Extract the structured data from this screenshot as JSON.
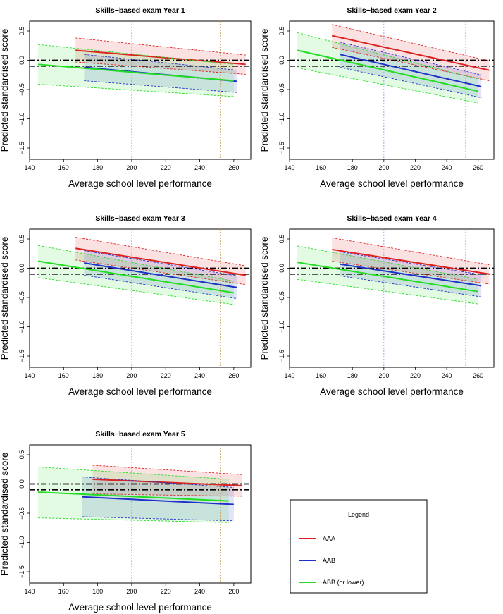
{
  "figure": {
    "xlabel": "Average school level performance",
    "ylabel": "Predicted standardised score",
    "legend_title": "Legend"
  },
  "colors": {
    "AAA": "#dd2222",
    "AAB": "#1f2fc8",
    "ABB": "#22dd22",
    "ref_blue": "#8a90e0",
    "ref_olive": "#c7a060"
  },
  "chart_data": [
    {
      "type": "line",
      "title": "Skills−based exam Year 1",
      "xlim": [
        140,
        270
      ],
      "ylim": [
        -1.5,
        0.5
      ],
      "xticks": [
        140,
        160,
        180,
        200,
        220,
        240,
        260
      ],
      "yticks": [
        -1.5,
        -1.0,
        -0.5,
        0.0,
        0.5
      ],
      "hlines": [
        0,
        -0.1
      ],
      "vlines": [
        200,
        252
      ],
      "series": [
        {
          "name": "AAA",
          "x": [
            167,
            267
          ],
          "y": [
            0.17,
            -0.07
          ],
          "lower": [
            -0.03,
            -0.24
          ],
          "upper": [
            0.38,
            0.09
          ]
        },
        {
          "name": "AAB",
          "x": [
            172,
            262
          ],
          "y": [
            -0.12,
            -0.36
          ],
          "lower": [
            -0.35,
            -0.55
          ],
          "upper": [
            0.1,
            -0.17
          ]
        },
        {
          "name": "ABB (or lower)",
          "x": [
            145,
            260
          ],
          "y": [
            -0.07,
            -0.35
          ],
          "lower": [
            -0.41,
            -0.62
          ],
          "upper": [
            0.27,
            -0.07
          ]
        }
      ]
    },
    {
      "type": "line",
      "title": "Skills−based exam Year 2",
      "xlim": [
        140,
        270
      ],
      "ylim": [
        -1.5,
        0.5
      ],
      "xticks": [
        140,
        160,
        180,
        200,
        220,
        240,
        260
      ],
      "yticks": [
        -1.5,
        -1.0,
        -0.5,
        0.0,
        0.5
      ],
      "hlines": [
        0,
        -0.1
      ],
      "vlines": [
        200,
        252
      ],
      "series": [
        {
          "name": "AAA",
          "x": [
            167,
            267
          ],
          "y": [
            0.42,
            -0.17
          ],
          "lower": [
            0.22,
            -0.35
          ],
          "upper": [
            0.61,
            -0.01
          ]
        },
        {
          "name": "AAB",
          "x": [
            172,
            262
          ],
          "y": [
            0.1,
            -0.45
          ],
          "lower": [
            -0.12,
            -0.64
          ],
          "upper": [
            0.31,
            -0.25
          ]
        },
        {
          "name": "ABB (or lower)",
          "x": [
            145,
            260
          ],
          "y": [
            0.17,
            -0.53
          ],
          "lower": [
            -0.13,
            -0.73
          ],
          "upper": [
            0.47,
            -0.32
          ]
        }
      ]
    },
    {
      "type": "line",
      "title": "Skills−based exam Year 3",
      "xlim": [
        140,
        270
      ],
      "ylim": [
        -1.5,
        0.5
      ],
      "xticks": [
        140,
        160,
        180,
        200,
        220,
        240,
        260
      ],
      "yticks": [
        -1.5,
        -1.0,
        -0.5,
        0.0,
        0.5
      ],
      "hlines": [
        0,
        -0.1
      ],
      "vlines": [
        200,
        252
      ],
      "series": [
        {
          "name": "AAA",
          "x": [
            167,
            267
          ],
          "y": [
            0.34,
            -0.12
          ],
          "lower": [
            0.14,
            -0.28
          ],
          "upper": [
            0.53,
            0.04
          ]
        },
        {
          "name": "AAB",
          "x": [
            172,
            262
          ],
          "y": [
            0.09,
            -0.33
          ],
          "lower": [
            -0.12,
            -0.52
          ],
          "upper": [
            0.3,
            -0.13
          ]
        },
        {
          "name": "ABB (or lower)",
          "x": [
            145,
            260
          ],
          "y": [
            0.12,
            -0.42
          ],
          "lower": [
            -0.16,
            -0.62
          ],
          "upper": [
            0.39,
            -0.22
          ]
        }
      ]
    },
    {
      "type": "line",
      "title": "Skills−based exam Year 4",
      "xlim": [
        140,
        270
      ],
      "ylim": [
        -1.5,
        0.5
      ],
      "xticks": [
        140,
        160,
        180,
        200,
        220,
        240,
        260
      ],
      "yticks": [
        -1.5,
        -1.0,
        -0.5,
        0.0,
        0.5
      ],
      "hlines": [
        0,
        -0.1
      ],
      "vlines": [
        200,
        252
      ],
      "series": [
        {
          "name": "AAA",
          "x": [
            167,
            267
          ],
          "y": [
            0.32,
            -0.1
          ],
          "lower": [
            0.12,
            -0.27
          ],
          "upper": [
            0.52,
            0.06
          ]
        },
        {
          "name": "AAB",
          "x": [
            172,
            262
          ],
          "y": [
            0.07,
            -0.3
          ],
          "lower": [
            -0.13,
            -0.49
          ],
          "upper": [
            0.28,
            -0.11
          ]
        },
        {
          "name": "ABB (or lower)",
          "x": [
            145,
            260
          ],
          "y": [
            0.1,
            -0.4
          ],
          "lower": [
            -0.19,
            -0.61
          ],
          "upper": [
            0.38,
            -0.19
          ]
        }
      ]
    },
    {
      "type": "line",
      "title": "Skills−based exam Year 5",
      "xlim": [
        140,
        270
      ],
      "ylim": [
        -1.5,
        0.5
      ],
      "xticks": [
        140,
        160,
        180,
        200,
        220,
        240,
        260
      ],
      "yticks": [
        -1.5,
        -1.0,
        -0.5,
        0.0,
        0.5
      ],
      "hlines": [
        0,
        -0.1
      ],
      "vlines": [
        200,
        252
      ],
      "series": [
        {
          "name": "AAA",
          "x": [
            177,
            265
          ],
          "y": [
            0.08,
            -0.03
          ],
          "lower": [
            -0.17,
            -0.21
          ],
          "upper": [
            0.32,
            0.16
          ]
        },
        {
          "name": "AAB",
          "x": [
            171,
            260
          ],
          "y": [
            -0.22,
            -0.35
          ],
          "lower": [
            -0.56,
            -0.63
          ],
          "upper": [
            0.12,
            -0.06
          ]
        },
        {
          "name": "ABB (or lower)",
          "x": [
            145,
            257
          ],
          "y": [
            -0.14,
            -0.29
          ],
          "lower": [
            -0.58,
            -0.66
          ],
          "upper": [
            0.29,
            0.08
          ]
        }
      ]
    }
  ],
  "legend": {
    "title": "Legend",
    "items": [
      {
        "label": "AAA",
        "color": "#dd2222"
      },
      {
        "label": "AAB",
        "color": "#1f2fc8"
      },
      {
        "label": "ABB (or lower)",
        "color": "#22dd22"
      }
    ]
  }
}
